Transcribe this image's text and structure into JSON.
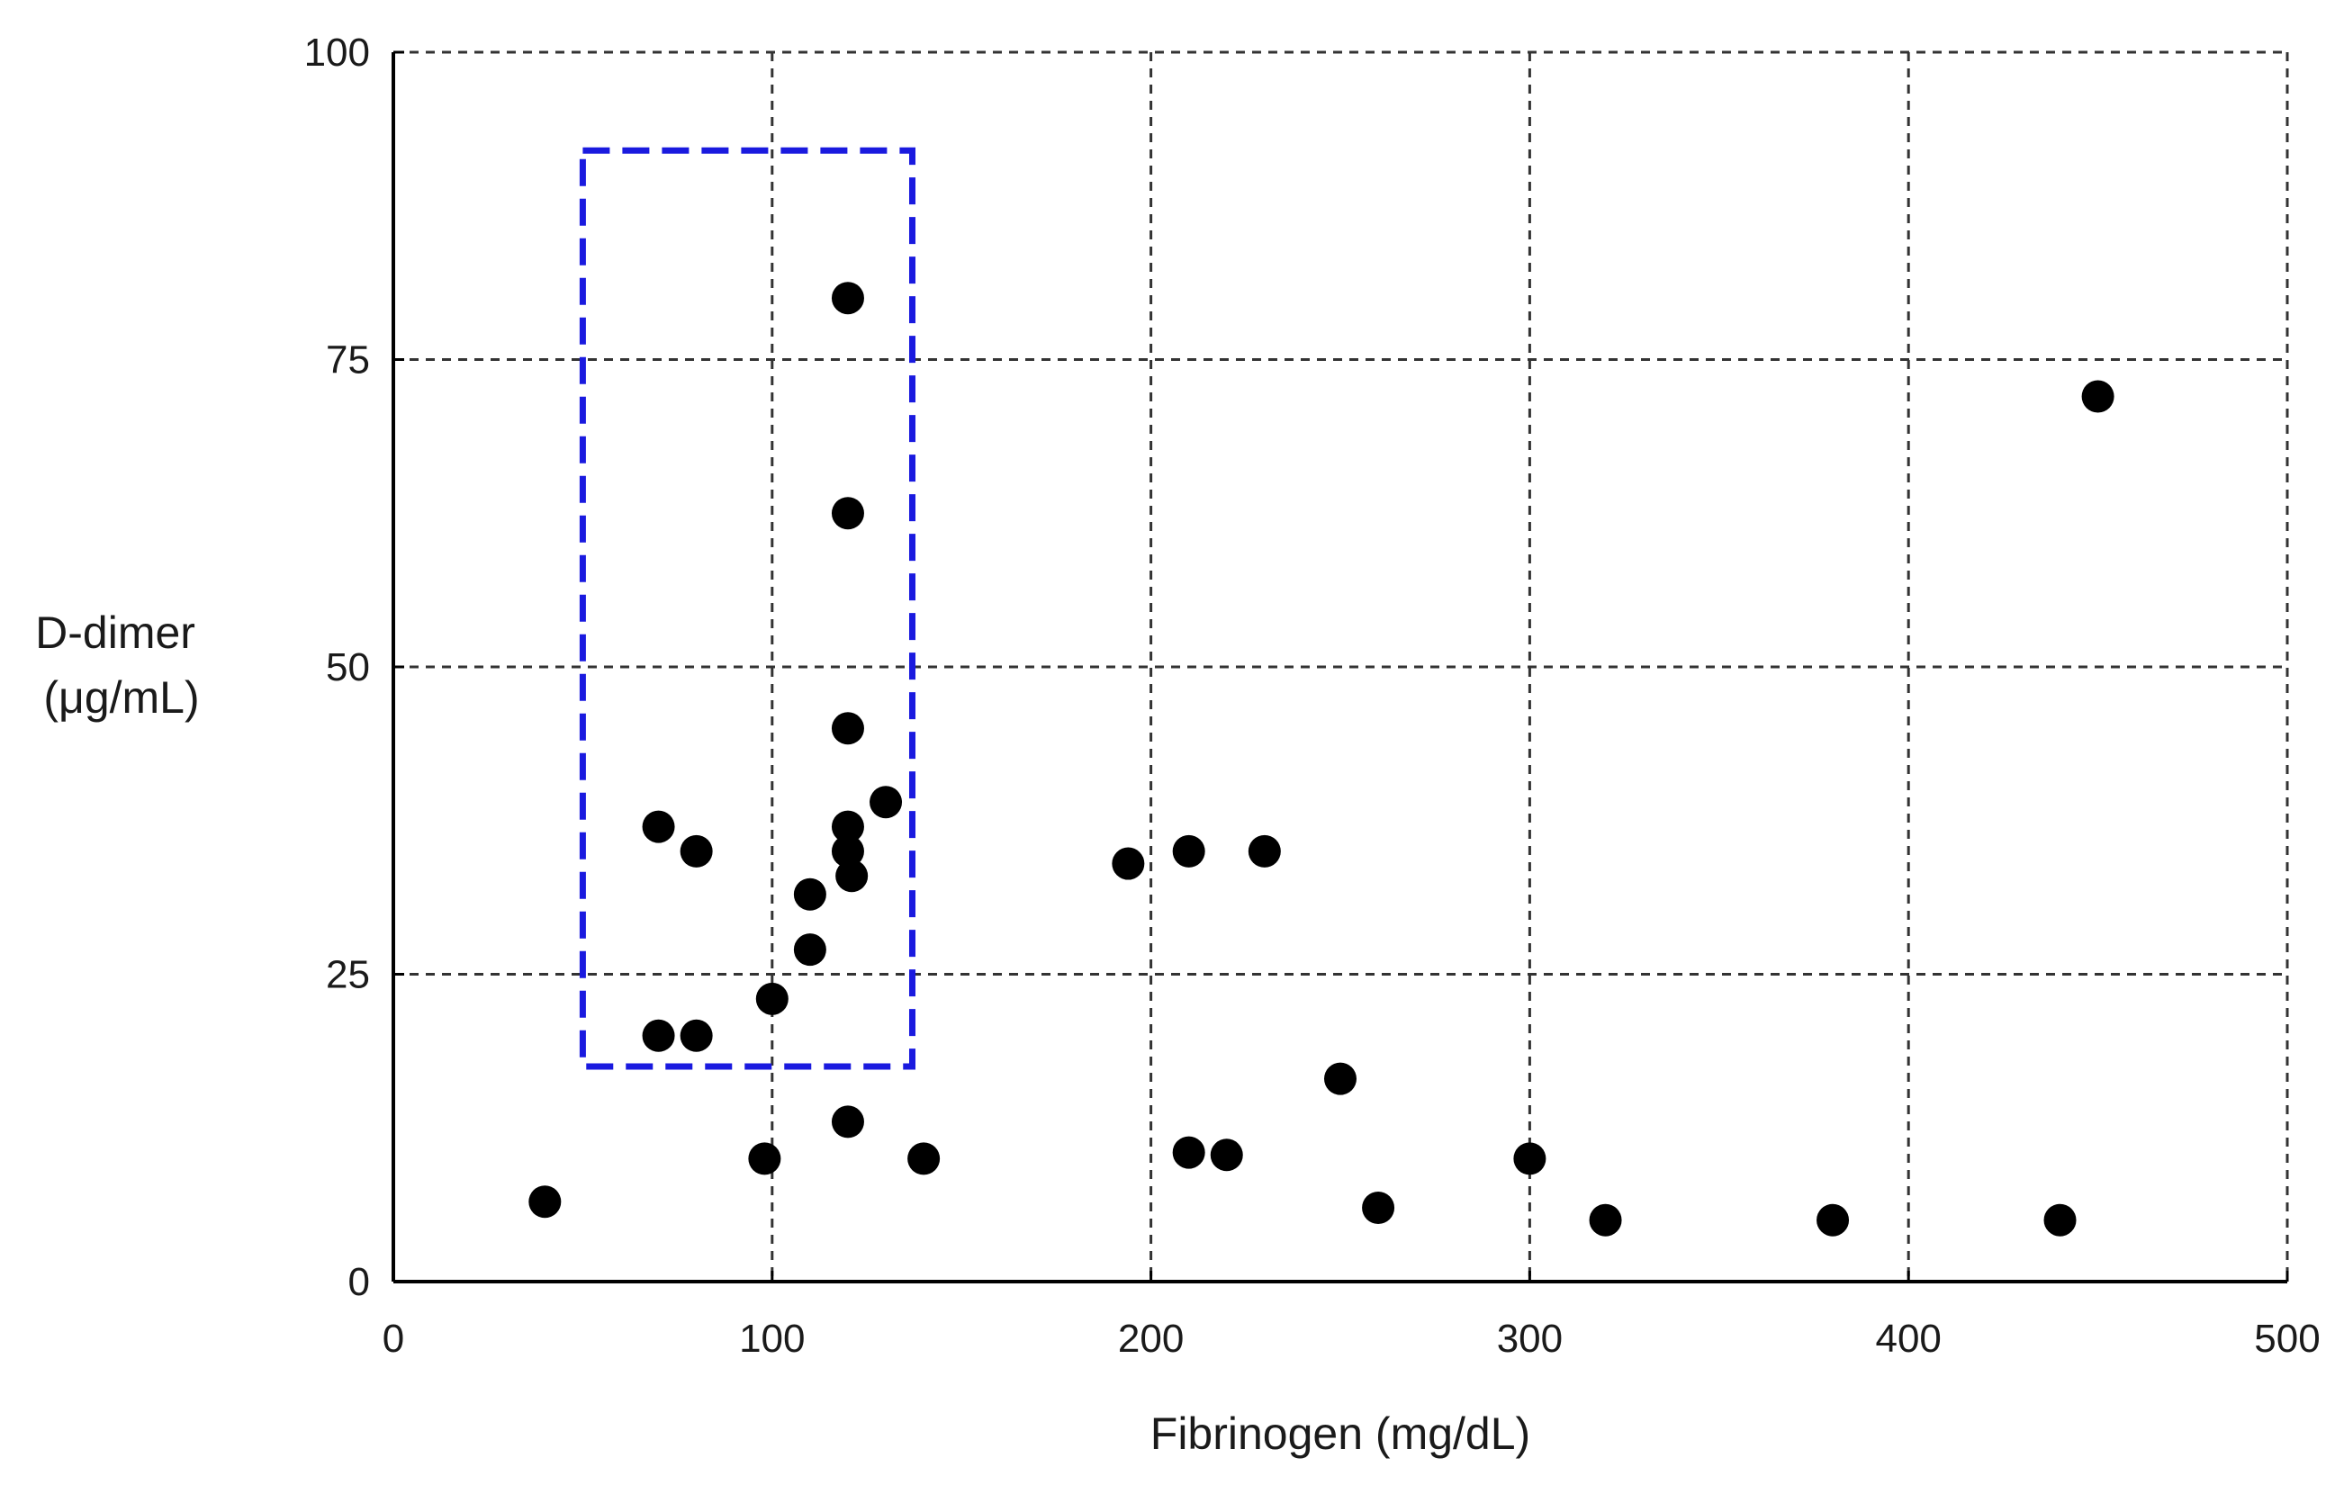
{
  "chart_data": {
    "type": "scatter",
    "title": "",
    "xlabel": "Fibrinogen (mg/dL)",
    "ylabel_lines": [
      "D-dimer",
      "(μg/mL)"
    ],
    "xlim": [
      0,
      500
    ],
    "ylim": [
      0,
      100
    ],
    "x_ticks": [
      0,
      100,
      200,
      300,
      400,
      500
    ],
    "y_ticks": [
      0,
      25,
      50,
      75,
      100
    ],
    "grid": true,
    "points": [
      {
        "x": 40,
        "y": 6.5
      },
      {
        "x": 70,
        "y": 37
      },
      {
        "x": 80,
        "y": 35
      },
      {
        "x": 70,
        "y": 20
      },
      {
        "x": 80,
        "y": 20
      },
      {
        "x": 98,
        "y": 10
      },
      {
        "x": 100,
        "y": 23
      },
      {
        "x": 110,
        "y": 27
      },
      {
        "x": 110,
        "y": 31.5
      },
      {
        "x": 120,
        "y": 80
      },
      {
        "x": 120,
        "y": 62.5
      },
      {
        "x": 120,
        "y": 45
      },
      {
        "x": 120,
        "y": 37
      },
      {
        "x": 120,
        "y": 35
      },
      {
        "x": 121,
        "y": 33
      },
      {
        "x": 130,
        "y": 39
      },
      {
        "x": 120,
        "y": 13
      },
      {
        "x": 140,
        "y": 10
      },
      {
        "x": 194,
        "y": 34
      },
      {
        "x": 210,
        "y": 35
      },
      {
        "x": 230,
        "y": 35
      },
      {
        "x": 210,
        "y": 10.5
      },
      {
        "x": 220,
        "y": 10.3
      },
      {
        "x": 250,
        "y": 16.5
      },
      {
        "x": 260,
        "y": 6
      },
      {
        "x": 300,
        "y": 10
      },
      {
        "x": 320,
        "y": 5
      },
      {
        "x": 380,
        "y": 5
      },
      {
        "x": 440,
        "y": 5
      },
      {
        "x": 450,
        "y": 72
      }
    ],
    "highlight_region": {
      "x": [
        50,
        137
      ],
      "y": [
        17.5,
        92
      ]
    },
    "colors": {
      "points": "#000000",
      "highlight": "#1a1adf",
      "grid": "#333333"
    }
  }
}
